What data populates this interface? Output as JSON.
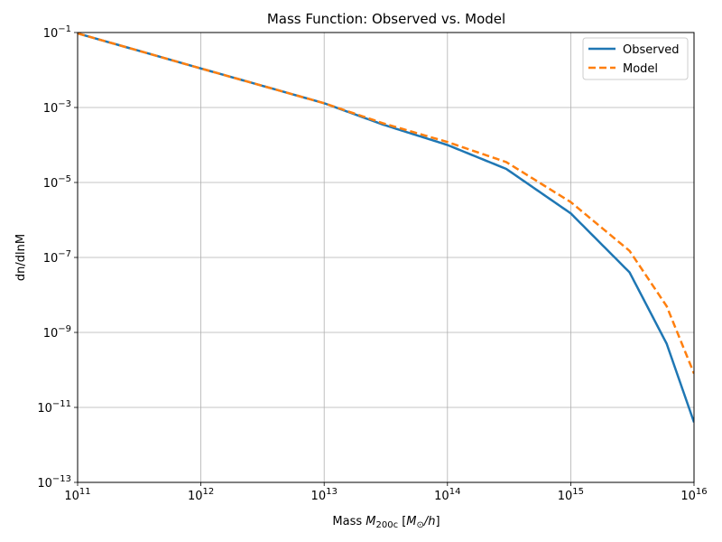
{
  "chart_data": {
    "type": "line",
    "title": "Mass Function: Observed vs. Model",
    "xlabel": {
      "prefix": "Mass ",
      "var": "M",
      "sub": "200c",
      "units_open": " [",
      "units_var": "M",
      "units_sub": "⊙",
      "units_tail": "/h",
      "units_close": "]"
    },
    "ylabel": "dn/dlnM",
    "x_scale": "log",
    "y_scale": "log",
    "xlim": [
      100000000000.0,
      1e+16
    ],
    "ylim": [
      1e-13,
      0.1
    ],
    "x_ticks": [
      {
        "base": "10",
        "exp": "11",
        "value": 100000000000.0
      },
      {
        "base": "10",
        "exp": "12",
        "value": 1000000000000.0
      },
      {
        "base": "10",
        "exp": "13",
        "value": 10000000000000.0
      },
      {
        "base": "10",
        "exp": "14",
        "value": 100000000000000.0
      },
      {
        "base": "10",
        "exp": "15",
        "value": 1000000000000000.0
      },
      {
        "base": "10",
        "exp": "16",
        "value": 1e+16
      }
    ],
    "y_ticks": [
      {
        "base": "10",
        "exp": "−1",
        "value": 0.1
      },
      {
        "base": "10",
        "exp": "−3",
        "value": 0.001
      },
      {
        "base": "10",
        "exp": "−5",
        "value": 1e-05
      },
      {
        "base": "10",
        "exp": "−7",
        "value": 1e-07
      },
      {
        "base": "10",
        "exp": "−9",
        "value": 1e-09
      },
      {
        "base": "10",
        "exp": "−11",
        "value": 1e-11
      },
      {
        "base": "10",
        "exp": "−13",
        "value": 1e-13
      }
    ],
    "grid": true,
    "legend_position": "top-right",
    "series": [
      {
        "name": "Observed",
        "color": "#1f77b4",
        "style": "solid",
        "x": [
          100000000000.0,
          1000000000000.0,
          10000000000000.0,
          30000000000000.0,
          100000000000000.0,
          300000000000000.0,
          1000000000000000.0,
          3000000000000000.0,
          6000000000000000.0,
          1e+16
        ],
        "y": [
          0.095,
          0.011,
          0.0013,
          0.00035,
          0.0001,
          2.3e-05,
          1.5e-06,
          4e-08,
          5e-10,
          4e-12
        ]
      },
      {
        "name": "Model",
        "color": "#ff7f0e",
        "style": "dashed",
        "x": [
          100000000000.0,
          1000000000000.0,
          10000000000000.0,
          30000000000000.0,
          100000000000000.0,
          300000000000000.0,
          1000000000000000.0,
          3000000000000000.0,
          6000000000000000.0,
          1e+16
        ],
        "y": [
          0.095,
          0.011,
          0.0013,
          0.00038,
          0.00012,
          3.5e-05,
          3e-06,
          1.5e-07,
          5e-09,
          8e-11
        ]
      }
    ]
  }
}
